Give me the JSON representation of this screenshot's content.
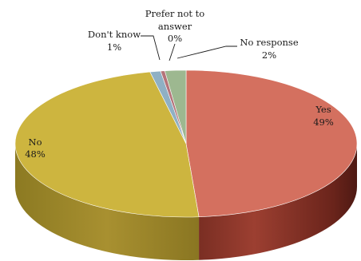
{
  "chart_data": {
    "type": "pie",
    "style": "3d",
    "title": "",
    "slices": [
      {
        "key": "yes",
        "label": "Yes",
        "percent_label": "49%",
        "value": 49,
        "color": "#D4705F"
      },
      {
        "key": "no",
        "label": "No",
        "percent_label": "48%",
        "value": 48,
        "color": "#CDB53F"
      },
      {
        "key": "dontknow",
        "label": "Don't know",
        "percent_label": "1%",
        "value": 1,
        "color": "#8FB0C4"
      },
      {
        "key": "prefer",
        "label": "Prefer not to answer",
        "label_lines": [
          "Prefer not to",
          "answer"
        ],
        "percent_label": "0%",
        "value": 0.4,
        "color": "#B5747A"
      },
      {
        "key": "noresp",
        "label": "No response",
        "percent_label": "2%",
        "value": 2,
        "color": "#9DB890"
      }
    ],
    "legend": "none"
  }
}
